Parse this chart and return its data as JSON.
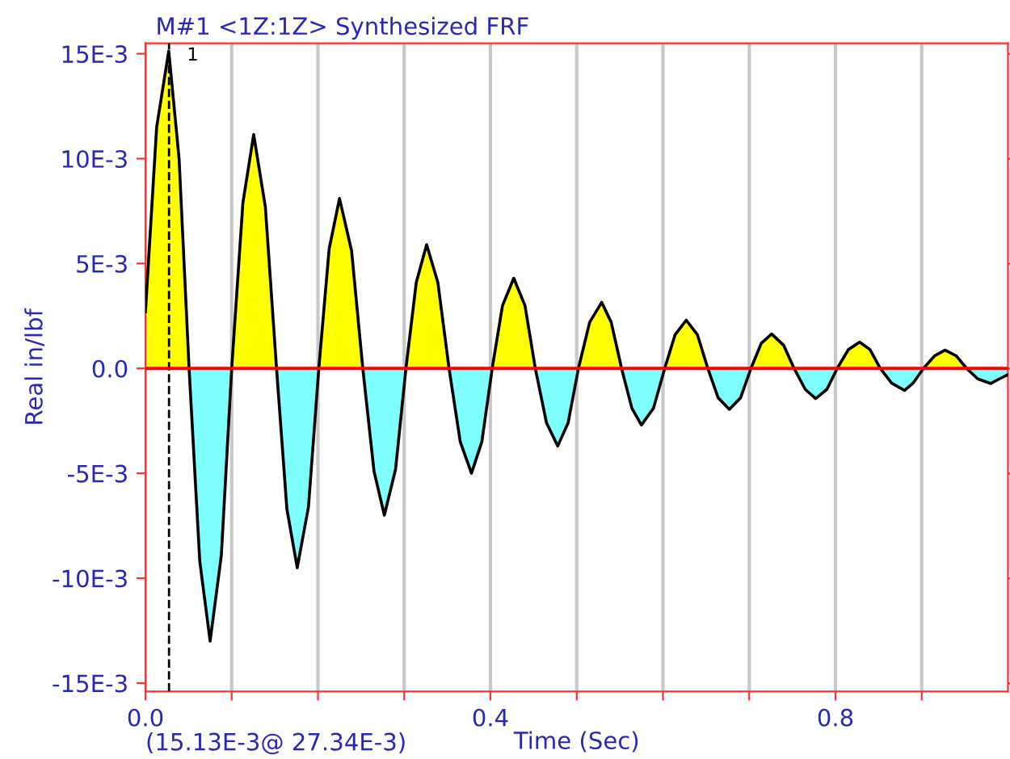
{
  "chart_data": {
    "type": "area",
    "title": "M#1 <1Z:1Z> Synthesized FRF",
    "xlabel": "Time (Sec)",
    "ylabel": "Real in/lbf",
    "x": [
      0,
      0.013,
      0.027,
      0.039,
      0.0506,
      0.063,
      0.075,
      0.088,
      0.1,
      0.113,
      0.1255,
      0.139,
      0.152,
      0.164,
      0.176,
      0.189,
      0.201,
      0.213,
      0.225,
      0.239,
      0.252,
      0.265,
      0.277,
      0.29,
      0.302,
      0.314,
      0.326,
      0.339,
      0.352,
      0.365,
      0.378,
      0.39,
      0.402,
      0.414,
      0.427,
      0.44,
      0.452,
      0.465,
      0.478,
      0.49,
      0.502,
      0.515,
      0.529,
      0.54,
      0.552,
      0.564,
      0.575,
      0.589,
      0.602,
      0.614,
      0.627,
      0.64,
      0.652,
      0.664,
      0.677,
      0.69,
      0.702,
      0.714,
      0.726,
      0.74,
      0.752,
      0.765,
      0.777,
      0.79,
      0.802,
      0.815,
      0.828,
      0.84,
      0.852,
      0.865,
      0.88,
      0.89,
      0.902,
      0.915,
      0.927,
      0.94,
      0.952,
      0.965,
      0.98,
      0.99,
      1.0
    ],
    "series": [
      {
        "color": "#ffff00",
        "values": [
          0.0027,
          0.0115,
          0.01513,
          0.01,
          0,
          null,
          null,
          null,
          0,
          0.0079,
          0.01115,
          0.0077,
          0,
          null,
          null,
          null,
          0,
          0.0057,
          0.0081,
          0.0056,
          0,
          null,
          null,
          null,
          0,
          0.0041,
          0.0059,
          0.0041,
          0,
          null,
          null,
          null,
          0,
          0.003,
          0.0043,
          0.003,
          0,
          null,
          null,
          null,
          0,
          0.0022,
          0.00315,
          0.0022,
          0,
          null,
          null,
          null,
          0,
          0.0016,
          0.0023,
          0.0016,
          0,
          null,
          null,
          null,
          0,
          0.0012,
          0.00164,
          0.0011,
          0,
          null,
          null,
          null,
          0,
          0.0009,
          0.00125,
          0.0009,
          0,
          null,
          null,
          null,
          0,
          0.0006,
          0.00087,
          0.0006,
          0,
          null,
          null,
          null,
          null
        ]
      },
      {
        "color": "#80ffff",
        "values": [
          null,
          null,
          null,
          null,
          0,
          -0.0092,
          -0.013,
          -0.0089,
          0,
          null,
          null,
          null,
          0,
          -0.0067,
          -0.0095,
          -0.0066,
          0,
          null,
          null,
          null,
          0,
          -0.0049,
          -0.007,
          -0.0048,
          0,
          null,
          null,
          null,
          0,
          -0.0035,
          -0.005,
          -0.0035,
          0,
          null,
          null,
          null,
          0,
          -0.0026,
          -0.0037,
          -0.0026,
          0,
          null,
          null,
          null,
          0,
          -0.0019,
          -0.0027,
          -0.0019,
          0,
          null,
          null,
          null,
          0,
          -0.0014,
          -0.00195,
          -0.0014,
          0,
          null,
          null,
          null,
          0,
          -0.001,
          -0.00144,
          -0.001,
          0,
          null,
          null,
          null,
          0,
          -0.0007,
          -0.00105,
          -0.0007,
          0,
          null,
          null,
          null,
          0,
          -0.0005,
          -0.00072,
          -0.0005,
          -0.0003
        ]
      },
      {
        "type": "line",
        "color": "#000000",
        "values": [
          0.0027,
          0.0115,
          0.01513,
          0.01,
          0,
          -0.0092,
          -0.013,
          -0.0089,
          0,
          0.0079,
          0.01115,
          0.0077,
          0,
          -0.0067,
          -0.0095,
          -0.0066,
          0,
          0.0057,
          0.0081,
          0.0056,
          0,
          -0.0049,
          -0.007,
          -0.0048,
          0,
          0.0041,
          0.0059,
          0.0041,
          0,
          -0.0035,
          -0.005,
          -0.0035,
          0,
          0.003,
          0.0043,
          0.003,
          0,
          -0.0026,
          -0.0037,
          -0.0026,
          0,
          0.0022,
          0.00315,
          0.0022,
          0,
          -0.0019,
          -0.0027,
          -0.0019,
          0,
          0.0016,
          0.0023,
          0.0016,
          0,
          -0.0014,
          -0.00195,
          -0.0014,
          0,
          0.0012,
          0.00164,
          0.0011,
          0,
          -0.001,
          -0.00144,
          -0.001,
          0,
          0.0009,
          0.00125,
          0.0009,
          0,
          -0.0007,
          -0.00105,
          -0.0007,
          0,
          0.0006,
          0.00087,
          0.0006,
          0,
          -0.0005,
          -0.00072,
          -0.0005,
          -0.0003
        ]
      }
    ],
    "xlim": [
      0,
      1.0
    ],
    "ylim": [
      -0.0154,
      0.0155
    ],
    "xticks": [
      {
        "value": 0,
        "label": "0.0"
      },
      {
        "value": 0.1,
        "label": null
      },
      {
        "value": 0.2,
        "label": null
      },
      {
        "value": 0.3,
        "label": null
      },
      {
        "value": 0.4,
        "label": "0.4"
      },
      {
        "value": 0.5,
        "label": null
      },
      {
        "value": 0.6,
        "label": null
      },
      {
        "value": 0.7,
        "label": null
      },
      {
        "value": 0.8,
        "label": "0.8"
      },
      {
        "value": 0.9,
        "label": null
      }
    ],
    "yticks": [
      {
        "value": -0.015,
        "label": "-15E-3"
      },
      {
        "value": -0.01,
        "label": "-10E-3"
      },
      {
        "value": -0.005,
        "label": "-5E-3"
      },
      {
        "value": 0,
        "label": "0.0"
      },
      {
        "value": 0.005,
        "label": "5E-3"
      },
      {
        "value": 0.01,
        "label": "10E-3"
      },
      {
        "value": 0.015,
        "label": "15E-3"
      }
    ],
    "grid": "x",
    "ref_lines": [
      {
        "axis": "x",
        "value": 0.02734,
        "label": "(15.13E-3@ 27.34E-3)",
        "color": "#000000",
        "line_style": "dashed"
      },
      {
        "axis": "y",
        "value": 0,
        "color": "#ff0000",
        "line_style": "solid"
      }
    ],
    "annotations": [
      {
        "text": "1",
        "x": 0.02734,
        "y": 0.01513
      }
    ]
  }
}
